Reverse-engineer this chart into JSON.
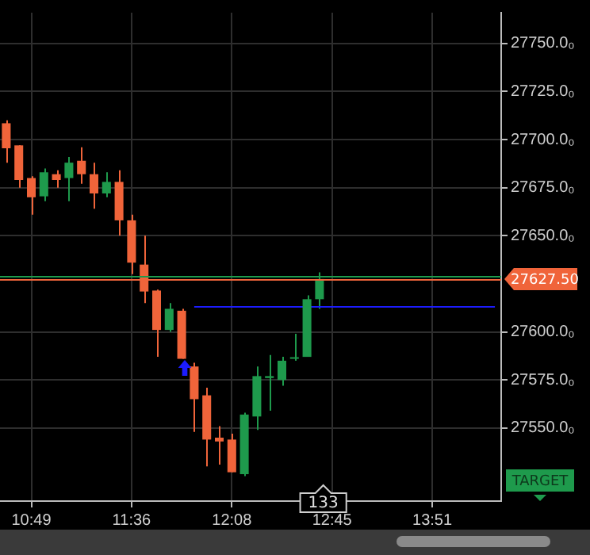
{
  "chart_data": {
    "type": "candlestick",
    "categories": [
      null,
      null,
      "10:49",
      null,
      null,
      null,
      null,
      null,
      null,
      null,
      "11:36",
      null,
      null,
      null,
      null,
      null,
      null,
      null,
      "12:08",
      null,
      null,
      null,
      null,
      null,
      null,
      null,
      "12:45",
      null,
      null,
      null,
      null,
      null,
      null,
      null,
      "13:51",
      null,
      null,
      null,
      null,
      null
    ],
    "ohlc": [
      [
        27708.5,
        27710,
        27688,
        27695.5
      ],
      [
        27697,
        27697,
        27675,
        27679
      ],
      [
        27680,
        27681,
        27661,
        27670
      ],
      [
        27670.5,
        27685,
        27668,
        27683
      ],
      [
        27682,
        27684,
        27675,
        27679
      ],
      [
        27680,
        27691,
        27668,
        27688
      ],
      [
        27689,
        27696,
        27677,
        27682
      ],
      [
        27682,
        27688,
        27664,
        27672
      ],
      [
        27672,
        27683,
        27670,
        27678
      ],
      [
        27678,
        27684,
        27650,
        27658
      ],
      [
        27658,
        27661,
        27630,
        27636
      ],
      [
        27635,
        27650,
        27615,
        27621
      ],
      [
        27621.5,
        27622,
        27587,
        27601
      ],
      [
        27601,
        27615,
        27600,
        27612
      ],
      [
        27611,
        27612,
        27586,
        27586
      ],
      [
        27582,
        27584,
        27548,
        27565
      ],
      [
        27567,
        27571,
        27530,
        27544
      ],
      [
        27545,
        27551,
        27531,
        27543
      ],
      [
        27544,
        27547,
        27527,
        27527
      ],
      [
        27526,
        27558,
        27525,
        27557
      ],
      [
        27556,
        27582,
        27549,
        27577
      ],
      [
        27576,
        27588,
        27559,
        27577
      ],
      [
        27575,
        27587,
        27572,
        27585
      ],
      [
        27586,
        27599,
        27585,
        27586.5
      ],
      [
        27587,
        27619,
        27587,
        27617
      ],
      [
        27617,
        27631,
        27612,
        27627.5
      ],
      null,
      null,
      null,
      null,
      null,
      null,
      null,
      null,
      null,
      null,
      null,
      null,
      null,
      null
    ],
    "colors": [
      "#f0643a",
      "#f0643a",
      "#f0643a",
      "#1e9a4c",
      "#f0643a",
      "#1e9a4c",
      "#f0643a",
      "#f0643a",
      "#1e9a4c",
      "#f0643a",
      "#f0643a",
      "#f0643a",
      "#f0643a",
      "#1e9a4c",
      "#f0643a",
      "#f0643a",
      "#f0643a",
      "#f0643a",
      "#f0643a",
      "#1e9a4c",
      "#1e9a4c",
      "#1e9a4c",
      "#1e9a4c",
      "#1e9a4c",
      "#1e9a4c",
      "#1e9a4c",
      null,
      null,
      null,
      null,
      null,
      null,
      null,
      null,
      null,
      null,
      null,
      null,
      null,
      null
    ],
    "series": [
      {
        "type": "line",
        "color": "#1c1cff",
        "values": [
          null,
          null,
          null,
          null,
          null,
          null,
          null,
          null,
          null,
          null,
          null,
          null,
          null,
          null,
          null,
          27613,
          27613,
          27613,
          27613,
          27613,
          27613,
          27613,
          27613,
          27613,
          27613,
          27613,
          27613,
          27613,
          27613,
          27613,
          27613,
          27613,
          27613,
          27613,
          27613,
          27613,
          27613,
          27613,
          27613,
          27613
        ]
      }
    ],
    "ref_lines": [
      {
        "axis": "y",
        "value": 27629,
        "color": "#1e9a4c"
      },
      {
        "axis": "y",
        "value": 27627.5,
        "label": "27627.50",
        "color": "#f0643a"
      }
    ],
    "annotations": [
      "133",
      "TARGET"
    ],
    "ylim": [
      27512,
      27766
    ],
    "yticks": [
      {
        "value": 27550,
        "label": "27550.0₀"
      },
      {
        "value": 27575,
        "label": "27575.0₀"
      },
      {
        "value": 27600,
        "label": "27600.0₀"
      },
      {
        "value": 27650,
        "label": "27650.0₀"
      },
      {
        "value": 27675,
        "label": "27675.0₀"
      },
      {
        "value": 27700,
        "label": "27700.0₀"
      },
      {
        "value": 27725,
        "label": "27725.0₀"
      },
      {
        "value": 27750,
        "label": "27750.0₀"
      }
    ],
    "grid": true,
    "legend": false
  }
}
